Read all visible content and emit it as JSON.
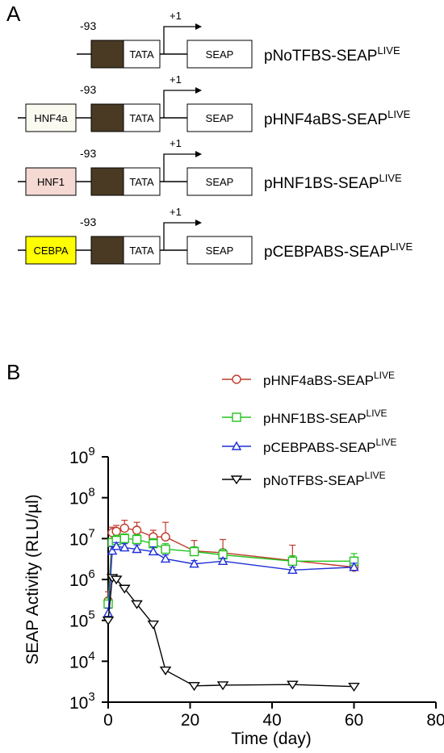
{
  "panel_a": {
    "letter": "A",
    "constructs": [
      {
        "tfbs_label": "",
        "tfbs_color": "",
        "position_label": "-93",
        "tata_label": "TATA",
        "tss_label": "+1",
        "reporter_label": "SEAP",
        "name": "pNoTFBS-SEAP",
        "name_sup": "LIVE"
      },
      {
        "tfbs_label": "HNF4a",
        "tfbs_color": "#fbfaf1",
        "position_label": "-93",
        "tata_label": "TATA",
        "tss_label": "+1",
        "reporter_label": "SEAP",
        "name": "pHNF4aBS-SEAP",
        "name_sup": "LIVE"
      },
      {
        "tfbs_label": "HNF1",
        "tfbs_color": "#f5d9d3",
        "position_label": "-93",
        "tata_label": "TATA",
        "tss_label": "+1",
        "reporter_label": "SEAP",
        "name": "pHNF1BS-SEAP",
        "name_sup": "LIVE"
      },
      {
        "tfbs_label": "CEBPA",
        "tfbs_color": "#ffff00",
        "position_label": "-93",
        "tata_label": "TATA",
        "tss_label": "+1",
        "reporter_label": "SEAP",
        "name": "pCEBPABS-SEAP",
        "name_sup": "LIVE"
      }
    ],
    "spacer_color": "#4a3a24"
  },
  "panel_b": {
    "letter": "B"
  },
  "chart_data": {
    "type": "line",
    "xlabel": "Time (day)",
    "ylabel": "SEAP Activity (RLU/µl)",
    "xlim": [
      0,
      80
    ],
    "x_ticks": [
      "0",
      "20",
      "40",
      "60",
      "80"
    ],
    "y_scale": "log",
    "ylim": [
      1000,
      1000000000
    ],
    "y_tick_values": [
      1000,
      10000,
      100000,
      1000000,
      10000000,
      100000000,
      1000000000
    ],
    "y_tick_exponents": [
      "3",
      "4",
      "5",
      "6",
      "7",
      "8",
      "9"
    ],
    "y_tick_base": "10",
    "legend_position": "top-right",
    "series": [
      {
        "name": "pHNF4aBS-SEAP",
        "name_sup": "LIVE",
        "color": "#c0392b",
        "marker": "circle",
        "x": [
          0,
          1,
          2,
          4,
          7,
          11,
          14,
          21,
          28,
          45,
          60
        ],
        "y": [
          300000,
          14000000,
          15000000,
          18000000,
          16000000,
          11000000,
          11000000,
          5000000,
          4500000,
          2900000,
          2000000
        ],
        "err_up": [
          200000,
          5000000,
          6000000,
          10000000,
          9000000,
          5000000,
          14000000,
          4000000,
          5000000,
          4000000,
          1500000
        ]
      },
      {
        "name": "pHNF1BS-SEAP",
        "name_sup": "LIVE",
        "color": "#22c41e",
        "marker": "square",
        "x": [
          0,
          1,
          2,
          4,
          7,
          11,
          14,
          21,
          28,
          45,
          60
        ],
        "y": [
          250000,
          8000000,
          9000000,
          10000000,
          9500000,
          7500000,
          5500000,
          4800000,
          4000000,
          2800000,
          2800000
        ],
        "err_up": [
          100000,
          2000000,
          3000000,
          3000000,
          3000000,
          2500000,
          2000000,
          1500000,
          1500000,
          1000000,
          1500000
        ]
      },
      {
        "name": "pCEBPABS-SEAP",
        "name_sup": "LIVE",
        "color": "#1f2fd6",
        "marker": "triangle-up",
        "x": [
          0,
          1,
          2,
          4,
          7,
          11,
          14,
          21,
          28,
          45,
          60
        ],
        "y": [
          150000,
          5000000,
          6500000,
          6000000,
          5500000,
          4800000,
          3200000,
          2400000,
          2800000,
          1700000,
          2000000
        ],
        "err_up": [
          50000,
          1500000,
          1500000,
          1500000,
          1500000,
          1500000,
          800000,
          500000,
          500000,
          300000,
          500000
        ]
      },
      {
        "name": "pNoTFBS-SEAP",
        "name_sup": "LIVE",
        "color": "#000000",
        "marker": "triangle-down",
        "x": [
          0,
          1,
          2,
          4,
          7,
          11,
          14,
          21,
          28,
          45,
          60
        ],
        "y": [
          100000,
          1100000,
          1000000,
          600000,
          250000,
          80000,
          6000,
          2500,
          2600,
          2700,
          2400
        ],
        "err_up": [
          20000,
          200000,
          200000,
          100000,
          50000,
          15000,
          1000,
          500,
          500,
          500,
          500
        ]
      }
    ]
  }
}
